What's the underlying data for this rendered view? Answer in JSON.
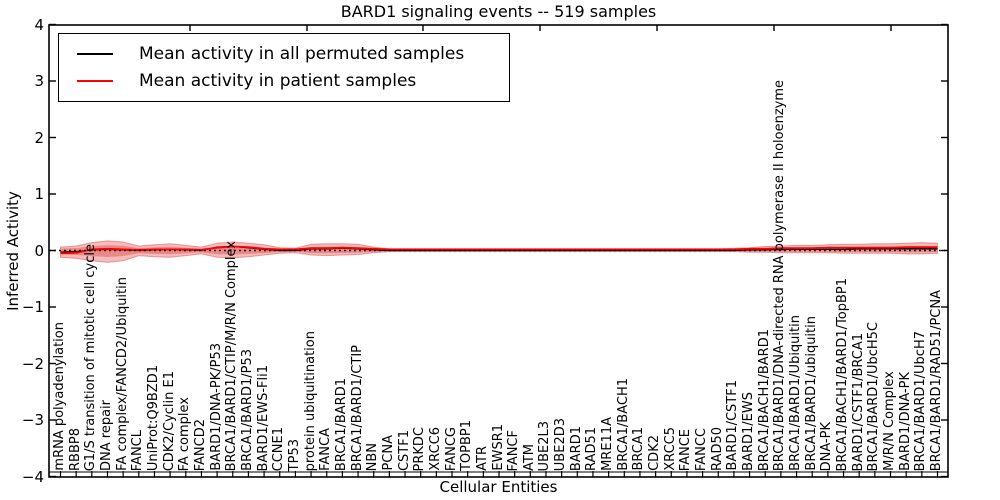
{
  "title": "BARD1 signaling events -- 519 samples",
  "axes": {
    "ylabel": "Inferred Activity",
    "xlabel": "Cellular Entities"
  },
  "legend": {
    "items": [
      {
        "label": "Mean activity in all permuted samples",
        "color": "#000000"
      },
      {
        "label": "Mean activity in patient samples",
        "color": "#ff0000"
      }
    ]
  },
  "colors": {
    "band_fill": "#dd3333",
    "zero_line": "#000000",
    "frame": "#000000",
    "background": "#ffffff"
  },
  "chart_data": {
    "type": "violin+line",
    "title": "BARD1 signaling events -- 519 samples",
    "xlabel": "Cellular Entities",
    "ylabel": "Inferred Activity",
    "ylim": [
      -4,
      4
    ],
    "yticks": [
      4,
      3,
      2,
      1,
      0,
      -1,
      -2,
      -3,
      -4
    ],
    "grid": false,
    "legend_position": "upper left",
    "categories": [
      "mRNA polyadenylation",
      "RBBP8",
      "G1/S transition of mitotic cell cycle",
      "DNA repair",
      "FA complex/FANCD2/Ubiquitin",
      "FANCL",
      "UniProt:Q9BZD1",
      "CDK2/Cyclin E1",
      "FA complex",
      "FANCD2",
      "BARD1/DNA-PK/P53",
      "BRCA1/BARD1/CTIP/M/R/N Complex",
      "BRCA1/BARD1/P53",
      "BARD1/EWS-Fli1",
      "CCNE1",
      "TP53",
      "protein ubiquitination",
      "FANCA",
      "BRCA1/BARD1",
      "BRCA1/BARD1/CTIP",
      "NBN",
      "PCNA",
      "CSTF1",
      "PRKDC",
      "XRCC6",
      "FANCG",
      "TOPBP1",
      "ATR",
      "EWSR1",
      "FANCF",
      "ATM",
      "UBE2L3",
      "UBE2D3",
      "BARD1",
      "RAD51",
      "MRE11A",
      "BRCA1/BACH1",
      "BRCA1",
      "CDK2",
      "XRCC5",
      "FANCE",
      "FANCC",
      "RAD50",
      "BARD1/CSTF1",
      "BARD1/EWS",
      "BRCA1/BACH1/BARD1",
      "BRCA1/BARD1/DNA-directed RNA polymerase II holoenzyme",
      "BRCA1/BARD1/Ubiquitin",
      "BRCA1/BARD1/ubiquitin",
      "DNA-PK",
      "BRCA1/BACH1/BARD1/TopBP1",
      "BARD1/CSTF1/BRCA1",
      "BRCA1/BARD1/UbcH5C",
      "M/R/N Complex",
      "BARD1/DNA-PK",
      "BRCA1/BARD1/UbcH7",
      "BRCA1/BARD1/RAD51/PCNA"
    ],
    "series": [
      {
        "name": "Mean activity in all permuted samples",
        "color": "#000000",
        "values": [
          -0.03,
          -0.02,
          0.01,
          0.02,
          0.01,
          0.0,
          0.01,
          0.02,
          0.01,
          0.0,
          0.06,
          0.07,
          0.05,
          0.02,
          0.0,
          0.0,
          0.03,
          0.03,
          0.04,
          0.03,
          0.01,
          0.0,
          0.0,
          0.0,
          0.0,
          0.0,
          0.0,
          0.0,
          0.0,
          0.0,
          0.0,
          0.0,
          0.0,
          0.0,
          0.0,
          0.0,
          0.0,
          0.0,
          0.0,
          0.0,
          0.0,
          0.0,
          0.0,
          0.0,
          0.01,
          0.01,
          0.02,
          0.02,
          0.02,
          0.02,
          0.02,
          0.03,
          0.03,
          0.03,
          0.03,
          0.03,
          0.03
        ]
      },
      {
        "name": "Mean activity in patient samples",
        "color": "#ff0000",
        "values": [
          -0.05,
          -0.04,
          0.02,
          0.03,
          0.02,
          0.01,
          0.02,
          0.02,
          0.02,
          0.01,
          0.05,
          0.07,
          0.06,
          0.03,
          0.02,
          0.02,
          0.04,
          0.04,
          0.05,
          0.04,
          0.03,
          0.02,
          0.02,
          0.02,
          0.02,
          0.02,
          0.02,
          0.02,
          0.02,
          0.02,
          0.02,
          0.02,
          0.02,
          0.02,
          0.02,
          0.02,
          0.02,
          0.02,
          0.02,
          0.02,
          0.02,
          0.02,
          0.02,
          0.02,
          0.03,
          0.03,
          0.04,
          0.04,
          0.04,
          0.05,
          0.05,
          0.05,
          0.05,
          0.05,
          0.06,
          0.06,
          0.06
        ]
      }
    ],
    "envelope": {
      "comment": "approximate outer extent of the red violin band, activity units",
      "upper": [
        0.06,
        0.08,
        0.14,
        0.17,
        0.15,
        0.08,
        0.1,
        0.12,
        0.09,
        0.06,
        0.13,
        0.15,
        0.13,
        0.1,
        0.05,
        0.04,
        0.11,
        0.12,
        0.12,
        0.11,
        0.06,
        0.03,
        0.03,
        0.03,
        0.03,
        0.03,
        0.03,
        0.03,
        0.03,
        0.03,
        0.03,
        0.03,
        0.03,
        0.03,
        0.03,
        0.03,
        0.03,
        0.03,
        0.03,
        0.03,
        0.03,
        0.03,
        0.03,
        0.04,
        0.05,
        0.07,
        0.08,
        0.09,
        0.09,
        0.1,
        0.11,
        0.11,
        0.12,
        0.12,
        0.13,
        0.14,
        0.13
      ],
      "lower": [
        -0.12,
        -0.14,
        -0.18,
        -0.21,
        -0.18,
        -0.09,
        -0.11,
        -0.12,
        -0.09,
        -0.06,
        -0.12,
        -0.13,
        -0.11,
        -0.08,
        -0.05,
        -0.04,
        -0.08,
        -0.09,
        -0.08,
        -0.07,
        -0.04,
        -0.02,
        -0.02,
        -0.02,
        -0.02,
        -0.02,
        -0.02,
        -0.02,
        -0.02,
        -0.02,
        -0.02,
        -0.02,
        -0.02,
        -0.02,
        -0.02,
        -0.02,
        -0.02,
        -0.02,
        -0.02,
        -0.02,
        -0.02,
        -0.02,
        -0.02,
        -0.02,
        -0.03,
        -0.03,
        -0.04,
        -0.04,
        -0.04,
        -0.04,
        -0.05,
        -0.05,
        -0.05,
        -0.05,
        -0.06,
        -0.06,
        -0.05
      ]
    }
  }
}
